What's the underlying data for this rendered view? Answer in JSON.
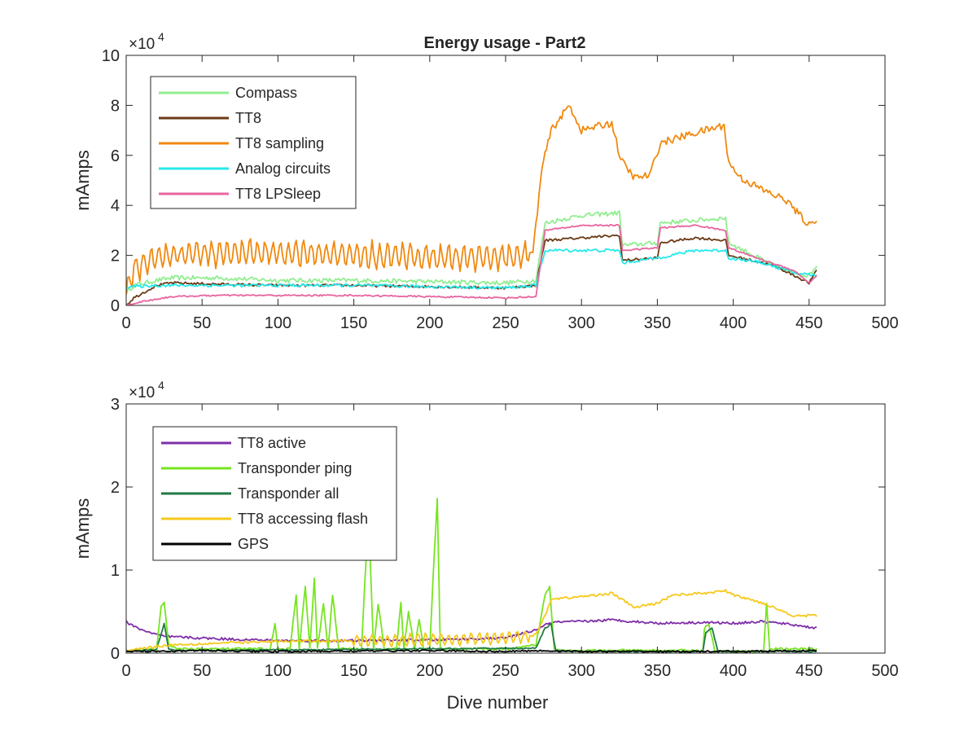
{
  "figure_title": "Energy usage - Part2",
  "chart_data": [
    {
      "type": "line",
      "title": "Energy usage - Part2",
      "xlabel": "",
      "ylabel": "mAmps",
      "y_multiplier": "×10",
      "y_multiplier_exp": "4",
      "xlim": [
        0,
        500
      ],
      "ylim": [
        0,
        100000
      ],
      "x_ticks": [
        0,
        50,
        100,
        150,
        200,
        250,
        300,
        350,
        400,
        450,
        500
      ],
      "y_ticks": [
        0,
        20000,
        40000,
        60000,
        80000,
        100000
      ],
      "y_tick_labels": [
        "0",
        "2",
        "4",
        "6",
        "8",
        "10"
      ],
      "grid": false,
      "legend_position": "top-left",
      "series": [
        {
          "name": "Compass",
          "color": "#90ee90",
          "noise": 900,
          "x": [
            0,
            5,
            20,
            30,
            60,
            100,
            150,
            200,
            250,
            270,
            276,
            300,
            325,
            327,
            350,
            352,
            375,
            395,
            397,
            420,
            430,
            440,
            450,
            455
          ],
          "y": [
            5000,
            8000,
            10000,
            11000,
            11000,
            10000,
            10000,
            9500,
            9000,
            10000,
            33000,
            36000,
            37000,
            24000,
            25000,
            33000,
            34000,
            35000,
            25000,
            18000,
            15000,
            13000,
            12000,
            16000
          ]
        },
        {
          "name": "TT8",
          "color": "#6b3a16",
          "noise": 500,
          "x": [
            0,
            5,
            20,
            30,
            60,
            100,
            150,
            200,
            250,
            270,
            276,
            300,
            325,
            327,
            350,
            352,
            375,
            395,
            397,
            420,
            430,
            440,
            450,
            455
          ],
          "y": [
            0,
            3000,
            8000,
            9000,
            8500,
            8000,
            8000,
            7500,
            7000,
            8000,
            26000,
            27000,
            28000,
            18000,
            19000,
            25000,
            27000,
            26000,
            20000,
            17000,
            15000,
            12000,
            9000,
            14000
          ]
        },
        {
          "name": "TT8 sampling",
          "color": "#f0890f",
          "noise": 1500,
          "osc": 5500,
          "osc_end": 265,
          "x": [
            0,
            5,
            15,
            30,
            60,
            100,
            150,
            200,
            250,
            268,
            274,
            280,
            292,
            300,
            320,
            326,
            335,
            345,
            352,
            375,
            394,
            397,
            405,
            420,
            435,
            450,
            455
          ],
          "y": [
            5000,
            15000,
            18000,
            20000,
            21000,
            21000,
            20000,
            19500,
            19000,
            21000,
            55000,
            70000,
            80000,
            70000,
            73000,
            58000,
            51000,
            52000,
            65000,
            69000,
            72000,
            57000,
            51000,
            46000,
            42000,
            32000,
            35000
          ]
        },
        {
          "name": "Analog circuits",
          "color": "#27e8eb",
          "noise": 600,
          "x": [
            0,
            5,
            20,
            50,
            100,
            150,
            200,
            250,
            270,
            276,
            300,
            325,
            327,
            350,
            375,
            395,
            397,
            420,
            440,
            455
          ],
          "y": [
            7000,
            7500,
            8000,
            8000,
            8000,
            8000,
            7500,
            7000,
            8000,
            22000,
            22000,
            22000,
            17000,
            19000,
            22000,
            22000,
            19000,
            17000,
            13000,
            12000
          ]
        },
        {
          "name": "TT8 LPSleep",
          "color": "#e8649f",
          "noise": 300,
          "x": [
            0,
            10,
            30,
            60,
            100,
            150,
            200,
            250,
            270,
            276,
            300,
            325,
            327,
            350,
            352,
            375,
            395,
            397,
            420,
            440,
            450,
            455
          ],
          "y": [
            0,
            1500,
            3500,
            4000,
            4000,
            4000,
            3500,
            3000,
            3500,
            30000,
            32000,
            32000,
            22000,
            23000,
            31000,
            32000,
            30000,
            23000,
            18000,
            14000,
            9000,
            12000
          ]
        }
      ]
    },
    {
      "type": "line",
      "title": "",
      "xlabel": "Dive number",
      "ylabel": "mAmps",
      "y_multiplier": "×10",
      "y_multiplier_exp": "4",
      "xlim": [
        0,
        500
      ],
      "ylim": [
        0,
        30000
      ],
      "x_ticks": [
        0,
        50,
        100,
        150,
        200,
        250,
        300,
        350,
        400,
        450,
        500
      ],
      "y_ticks": [
        0,
        10000,
        20000,
        30000
      ],
      "y_tick_labels": [
        "0",
        "1",
        "2",
        "3"
      ],
      "grid": false,
      "legend_position": "top-left",
      "series": [
        {
          "name": "TT8 active",
          "color": "#7e2fa8",
          "noise": 150,
          "x": [
            0,
            5,
            15,
            25,
            50,
            100,
            150,
            200,
            250,
            270,
            280,
            300,
            320,
            350,
            380,
            400,
            420,
            440,
            455
          ],
          "y": [
            3800,
            3200,
            2500,
            2000,
            1800,
            1500,
            1500,
            1600,
            1800,
            2800,
            3700,
            3800,
            4000,
            3600,
            3700,
            3600,
            3800,
            3400,
            3000
          ]
        },
        {
          "name": "Transponder ping",
          "color": "#76e51f",
          "noise": 150,
          "x": [
            0,
            20,
            23,
            25,
            28,
            35,
            95,
            98,
            100,
            108,
            112,
            114,
            118,
            121,
            124,
            126,
            130,
            133,
            136,
            140,
            155,
            158,
            160,
            163,
            166,
            170,
            178,
            181,
            183,
            186,
            190,
            193,
            196,
            200,
            203,
            205,
            207,
            210,
            255,
            270,
            276,
            279,
            282,
            290,
            380,
            381,
            384,
            388,
            420,
            422,
            424,
            426,
            455
          ],
          "y": [
            300,
            500,
            5500,
            6000,
            1000,
            500,
            500,
            3500,
            500,
            500,
            7000,
            500,
            8000,
            500,
            9000,
            500,
            6000,
            500,
            7000,
            500,
            500,
            11000,
            15000,
            500,
            6000,
            500,
            500,
            6000,
            500,
            5000,
            500,
            4000,
            500,
            500,
            12000,
            18500,
            500,
            500,
            500,
            1000,
            7000,
            8000,
            600,
            300,
            300,
            3000,
            3500,
            200,
            200,
            6000,
            500,
            500,
            500
          ]
        },
        {
          "name": "Transponder all",
          "color": "#1f7a45",
          "noise": 80,
          "x": [
            0,
            20,
            25,
            28,
            35,
            270,
            276,
            280,
            283,
            300,
            380,
            382,
            386,
            390,
            455
          ],
          "y": [
            300,
            400,
            3500,
            500,
            300,
            600,
            3000,
            3500,
            300,
            200,
            200,
            2500,
            3000,
            200,
            200
          ]
        },
        {
          "name": "TT8 accessing flash",
          "color": "#f5c91b",
          "noise": 150,
          "osc": 800,
          "osc_start": 150,
          "osc_end": 265,
          "x": [
            0,
            10,
            30,
            60,
            100,
            150,
            200,
            250,
            270,
            276,
            280,
            300,
            320,
            335,
            350,
            360,
            380,
            395,
            400,
            420,
            440,
            455
          ],
          "y": [
            200,
            600,
            1000,
            1200,
            1400,
            1500,
            1600,
            1800,
            2200,
            4500,
            6500,
            6800,
            7200,
            5500,
            6000,
            7000,
            7200,
            7500,
            7000,
            6000,
            4500,
            4500
          ]
        },
        {
          "name": "GPS",
          "color": "#000000",
          "noise": 100,
          "x": [
            0,
            50,
            100,
            200,
            250,
            270,
            300,
            400,
            455
          ],
          "y": [
            200,
            300,
            200,
            300,
            200,
            300,
            200,
            200,
            300
          ]
        }
      ]
    }
  ]
}
